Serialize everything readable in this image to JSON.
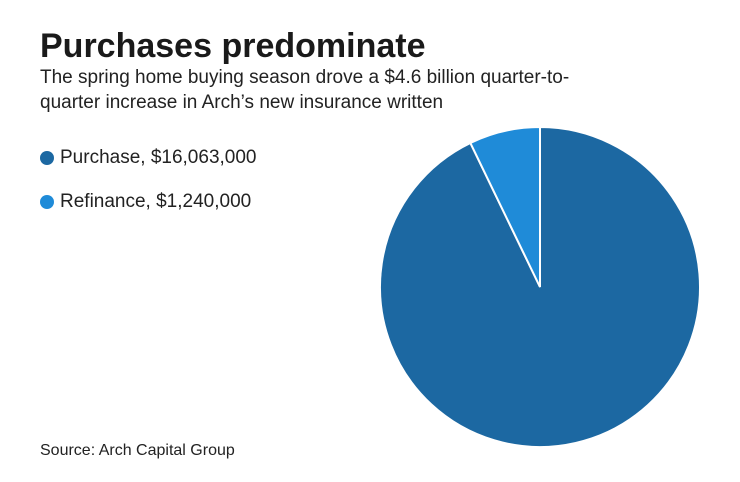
{
  "chart_data": {
    "type": "pie",
    "title": "Purchases predominate",
    "subtitle": [
      "The spring home buying season drove a $4.6 billion quarter-to-",
      "quarter increase in Arch’s new insurance written"
    ],
    "categories": [
      "Purchase, $16,063,000",
      "Refinance, $1,240,000"
    ],
    "values": [
      16063000,
      1240000
    ],
    "colors": [
      "#1c68a2",
      "#1f8bd8"
    ],
    "source": "Source: Arch Capital Group"
  }
}
